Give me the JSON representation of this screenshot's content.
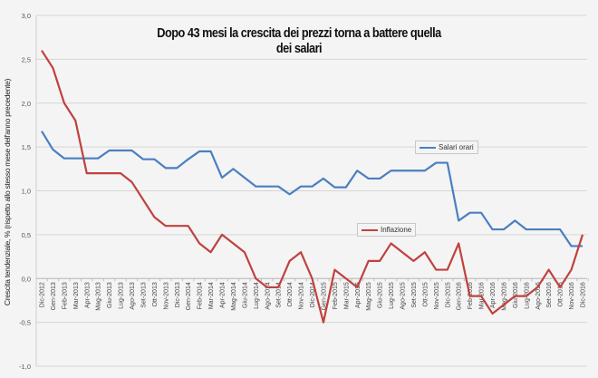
{
  "chart_data": {
    "type": "line",
    "title": "Dopo 43 mesi la crescita dei prezzi torna a battere quella dei salari",
    "xlabel": "",
    "ylabel": "Crescita tendenziale, % (rispetto allo stesso mese dell'anno precedente)",
    "ylim": [
      -1.0,
      3.0
    ],
    "yticks": [
      "-1,0",
      "-0,5",
      "0,0",
      "0,5",
      "1,0",
      "1,5",
      "2,0",
      "2,5",
      "3,0"
    ],
    "grid": true,
    "categories": [
      "Dic-2012",
      "Gen-2013",
      "Feb-2013",
      "Mar-2013",
      "Apr-2013",
      "Mag-2013",
      "Giu-2013",
      "Lug-2013",
      "Ago-2013",
      "Set-2013",
      "Ott-2013",
      "Nov-2013",
      "Dic-2013",
      "Gen-2014",
      "Feb-2014",
      "Mar-2014",
      "Apr-2014",
      "Mag-2014",
      "Giu-2014",
      "Lug-2014",
      "Ago-2014",
      "Set-2014",
      "Ott-2014",
      "Nov-2014",
      "Dic-2014",
      "Gen-2015",
      "Feb-2015",
      "Mar-2015",
      "Apr-2015",
      "Mag-2015",
      "Giu-2015",
      "Lug-2015",
      "Ago-2015",
      "Set-2015",
      "Ott-2015",
      "Nov-2015",
      "Dic-2015",
      "Gen-2016",
      "Feb-2016",
      "Mar-2016",
      "Apr-2016",
      "Mag-2016",
      "Giu-2016",
      "Lug-2016",
      "Ago-2016",
      "Set-2016",
      "Ott-2016",
      "Nov-2016",
      "Dic-2016"
    ],
    "series": [
      {
        "name": "Salari orari",
        "color": "#4a7fc1",
        "values": [
          1.68,
          1.47,
          1.37,
          1.37,
          1.37,
          1.37,
          1.46,
          1.46,
          1.46,
          1.36,
          1.36,
          1.26,
          1.26,
          1.36,
          1.45,
          1.45,
          1.15,
          1.25,
          1.15,
          1.05,
          1.05,
          1.05,
          0.96,
          1.05,
          1.05,
          1.14,
          1.04,
          1.04,
          1.23,
          1.14,
          1.14,
          1.23,
          1.23,
          1.23,
          1.23,
          1.32,
          1.32,
          0.66,
          0.75,
          0.75,
          0.56,
          0.56,
          0.66,
          0.56,
          0.56,
          0.56,
          0.56,
          0.37,
          0.37
        ]
      },
      {
        "name": "Inflazione",
        "color": "#c0413e",
        "values": [
          2.6,
          2.4,
          2.0,
          1.8,
          1.2,
          1.2,
          1.2,
          1.2,
          1.1,
          0.9,
          0.7,
          0.6,
          0.6,
          0.6,
          0.4,
          0.3,
          0.5,
          0.4,
          0.3,
          0.0,
          -0.1,
          -0.1,
          0.2,
          0.3,
          0.0,
          -0.5,
          0.1,
          0.0,
          -0.1,
          0.2,
          0.2,
          0.4,
          0.3,
          0.2,
          0.3,
          0.1,
          0.1,
          0.4,
          -0.2,
          -0.2,
          -0.4,
          -0.3,
          -0.2,
          -0.2,
          -0.1,
          0.1,
          -0.1,
          0.1,
          0.5
        ]
      }
    ]
  }
}
